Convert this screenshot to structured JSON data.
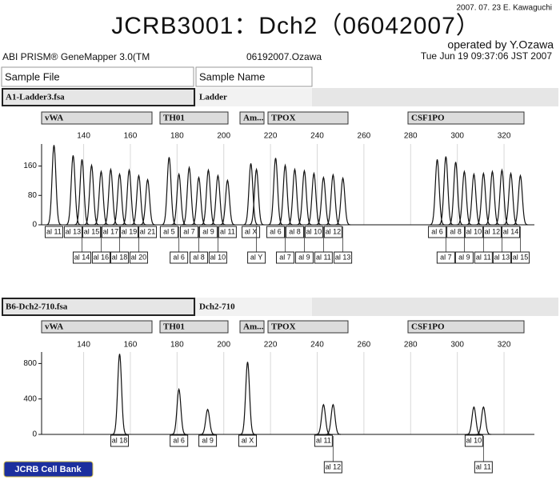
{
  "header": {
    "date_note": "2007. 07. 23 E. Kawaguchi",
    "title": "JCRB3001：Dch2（06042007）",
    "operator": "operated by Y.Ozawa",
    "software": "ABI PRISM® GeneMapper 3.0(TM",
    "project": "06192007.Ozawa",
    "timestamp": "Tue Jun 19 09:37:06 JST 2007",
    "col_sample_file": "Sample File",
    "col_sample_name": "Sample Name"
  },
  "footer": "JCRB Cell Bank",
  "chart_data": [
    {
      "type": "peaks",
      "sample_file": "A1-Ladder3.fsa",
      "sample_name": "Ladder",
      "markers": [
        "vWA",
        "TH01",
        "Am...",
        "TPOX",
        "CSF1PO"
      ],
      "x": [
        127.3,
        135.5,
        139.3,
        143.4,
        147.5,
        151.6,
        155.4,
        159.5,
        163.6,
        167.4,
        176.6,
        180.8,
        185.2,
        189.3,
        193.4,
        197.5,
        201.6,
        211.6,
        214.0,
        222.2,
        226.3,
        230.4,
        234.5,
        238.6,
        242.7,
        246.8,
        251.0,
        291.4,
        295.1,
        299.3,
        303.0,
        307.1,
        311.2,
        315.0,
        319.1,
        322.9,
        327.0
      ],
      "values": [
        217,
        189,
        178,
        162,
        145,
        151,
        138,
        149,
        134,
        123,
        184,
        138,
        156,
        129,
        149,
        134,
        121,
        167,
        151,
        182,
        162,
        151,
        147,
        140,
        129,
        136,
        127,
        178,
        186,
        171,
        145,
        138,
        140,
        145,
        149,
        140,
        134
      ],
      "alleles": [
        "al 11",
        "al 13",
        "al 14",
        "al 15",
        "al 16",
        "al 17",
        "al 18",
        "al 19",
        "al 20",
        "al 21",
        "al 5",
        "al 6",
        "al 7",
        "al 8",
        "al 9",
        "al 10",
        "al 11",
        "al X",
        "al Y",
        "al 6",
        "al 7",
        "al 8",
        "al 9",
        "al 10",
        "al 11",
        "al 12",
        "al 13",
        "al 6",
        "al 7",
        "al 8",
        "al 9",
        "al 10",
        "al 11",
        "al 12",
        "al 13",
        "al 14",
        "al 15"
      ],
      "xlim": [
        122,
        333
      ],
      "xticks": [
        140,
        160,
        180,
        200,
        220,
        240,
        260,
        280,
        300,
        320
      ],
      "ylim": [
        0,
        220
      ],
      "yticks": [
        0,
        80,
        160
      ],
      "color": "#111111",
      "grid": true
    },
    {
      "type": "peaks",
      "sample_file": "B6-Dch2-710.fsa",
      "sample_name": "Dch2-710",
      "markers": [
        "vWA",
        "TH01",
        "Am...",
        "TPOX",
        "CSF1PO"
      ],
      "x": [
        155.4,
        180.8,
        193.1,
        210.2,
        242.7,
        246.8,
        307.1,
        311.2
      ],
      "values": [
        909,
        509,
        282,
        818,
        336,
        336,
        309,
        309
      ],
      "alleles": [
        "al 18",
        "al 6",
        "al 9",
        "al X",
        "al 11",
        "al 12",
        "al 10",
        "al 11"
      ],
      "xlim": [
        122,
        333
      ],
      "xticks": [
        140,
        160,
        180,
        200,
        220,
        240,
        260,
        280,
        300,
        320
      ],
      "ylim": [
        0,
        930
      ],
      "yticks": [
        0,
        400,
        800
      ],
      "color": "#111111",
      "grid": true
    }
  ]
}
